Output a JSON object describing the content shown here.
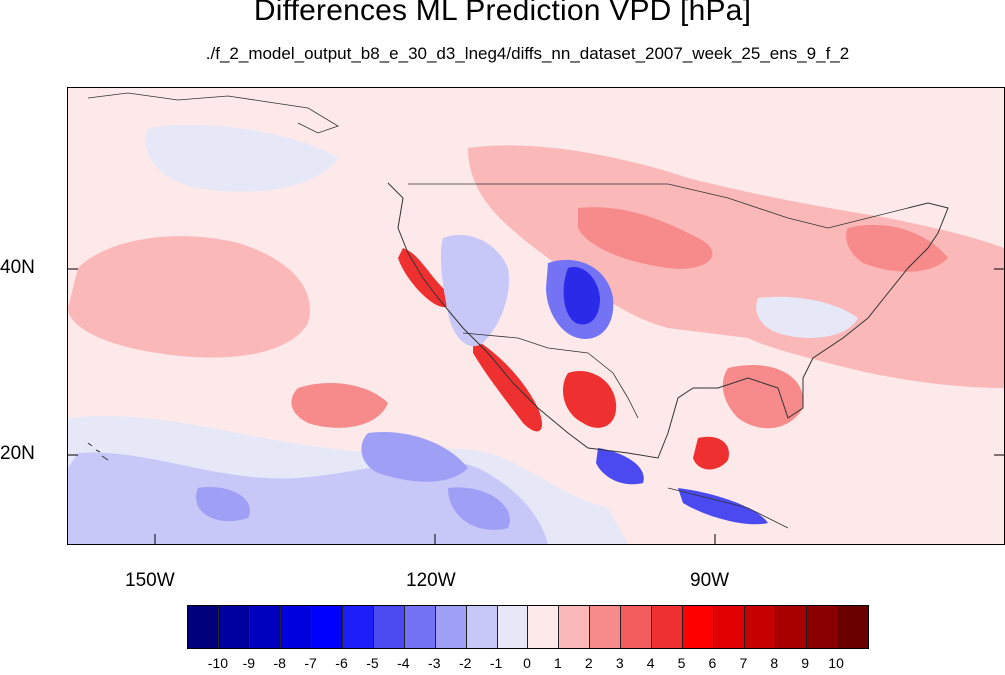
{
  "title": "Differences ML Prediction VPD [hPa]",
  "subtitle": "./f_2_model_output_b8_e_30_d3_lneg4/diffs_nn_dataset_2007_week_25_ens_9_f_2",
  "axes": {
    "x_ticks": [
      "150W",
      "120W",
      "90W"
    ],
    "y_ticks": [
      "40N",
      "20N"
    ]
  },
  "colorbar": {
    "labels": [
      "-10",
      "-9",
      "-8",
      "-7",
      "-6",
      "-5",
      "-4",
      "-3",
      "-2",
      "-1",
      "0",
      "1",
      "2",
      "3",
      "4",
      "5",
      "6",
      "7",
      "8",
      "9",
      "10"
    ],
    "colors": [
      "#00007a",
      "#00009e",
      "#0000bf",
      "#0000df",
      "#0000ff",
      "#1e1ef8",
      "#4a4af0",
      "#7373f3",
      "#9f9ff5",
      "#c8c8f8",
      "#e6e8f8",
      "#fde9e9",
      "#fbb8b8",
      "#f78a8a",
      "#f25c5c",
      "#ef3030",
      "#ff0000",
      "#e10000",
      "#c60000",
      "#a80000",
      "#8a0000",
      "#6a0000"
    ]
  },
  "colors": {
    "ocean_neutral": "#fde9e9",
    "positive_light": "#fbb8b8",
    "positive_mid": "#f78a8a",
    "positive_strong": "#ef3030",
    "negative_light": "#c8c8f8",
    "negative_mid": "#9f9ff5",
    "negative_strong": "#2a2ae8"
  }
}
